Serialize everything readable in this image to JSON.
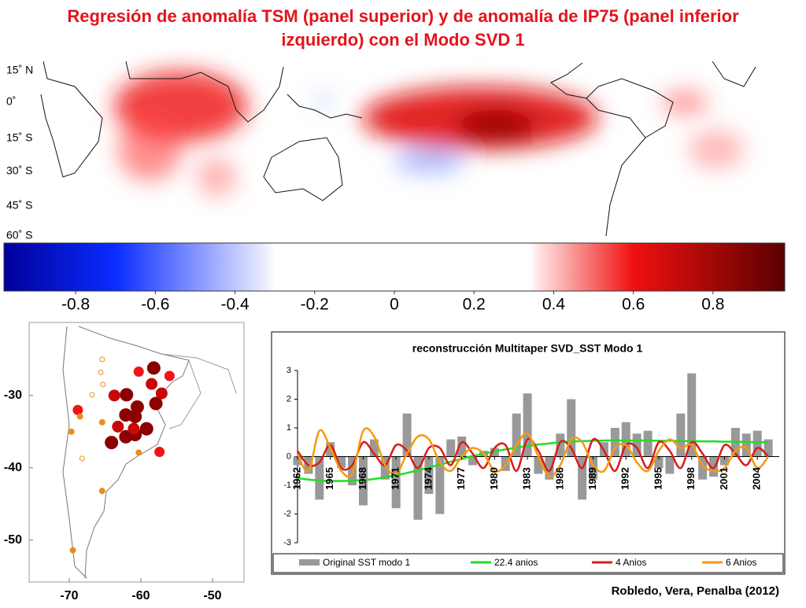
{
  "title": [
    "Regresión de anomalía TSM (panel superior) y de anomalía de IP75 (panel inferior",
    "izquierdo) con el Modo SVD 1"
  ],
  "citation": "Robledo, Vera, Penalba (2012)",
  "chart_data": [
    {
      "type": "map",
      "lat_labels": [
        "15˚ N",
        "0˚",
        "15˚ S",
        "30˚ S",
        "45˚ S",
        "60˚ S"
      ]
    },
    {
      "type": "colorbar",
      "xlim": [
        -0.98,
        0.98
      ],
      "xticks": [
        -0.8,
        -0.6,
        -0.4,
        -0.2,
        0,
        0.2,
        0.4,
        0.6,
        0.8
      ],
      "color_stops": [
        {
          "value": -0.98,
          "color": "#00009a"
        },
        {
          "value": -0.7,
          "color": "#0a2cff"
        },
        {
          "value": -0.32,
          "color": "#eef0ff"
        },
        {
          "value": -0.3,
          "color": "#ffffff"
        },
        {
          "value": 0.34,
          "color": "#ffffff"
        },
        {
          "value": 0.36,
          "color": "#ffe6e6"
        },
        {
          "value": 0.6,
          "color": "#f01010"
        },
        {
          "value": 0.98,
          "color": "#5a0000"
        }
      ]
    },
    {
      "type": "scatter",
      "xlim": [
        -75.6,
        -45.6
      ],
      "ylim": [
        -55.8,
        -19.9
      ],
      "xticks": [
        -70,
        -60,
        -50
      ],
      "yticks": [
        -30,
        -40,
        -50
      ],
      "series": [
        {
          "color": "#8b0000",
          "x": [
            -58.2,
            -62,
            -60.5,
            -62.1,
            -60.8,
            -57.9,
            -59.2,
            -62.1,
            -60.8,
            -64.1
          ],
          "values": [
            -26.2,
            -29.9,
            -31.6,
            -32.7,
            -32.9,
            -31.1,
            -34.6,
            -35.7,
            -35.4,
            -36.5
          ]
        },
        {
          "color": "#c80808",
          "x": [
            -58.5,
            -63.7,
            -63.2,
            -57.1,
            -61
          ],
          "values": [
            -28.4,
            -30,
            -34.3,
            -29.7,
            -34.6
          ]
        },
        {
          "color": "#f01515",
          "x": [
            -60.3,
            -56,
            -68.8,
            -57.4
          ],
          "values": [
            -26.7,
            -27.3,
            -32,
            -37.8
          ]
        },
        {
          "color": "#f08a1a",
          "x": [
            -69.7,
            -68.5,
            -65.4,
            -60.3,
            -65.4,
            -69.5
          ],
          "values": [
            -35,
            -32.9,
            -33.7,
            -37.9,
            -43.2,
            -51.4
          ]
        },
        {
          "color": "#f08a1a",
          "hollow": true,
          "x": [
            -65.4,
            -65.6,
            -65.3,
            -68.2,
            -66.8
          ],
          "values": [
            -25,
            -26.8,
            -28.5,
            -38.7,
            -29.9
          ]
        }
      ]
    },
    {
      "type": "line",
      "title": "reconstrucción Multitaper SVD_SST Modo 1",
      "x": [
        1962,
        1963,
        1964,
        1965,
        1966,
        1967,
        1968,
        1969,
        1970,
        1971,
        1972,
        1973,
        1974,
        1975,
        1976,
        1977,
        1978,
        1979,
        1980,
        1981,
        1982,
        1983,
        1984,
        1985,
        1986,
        1987,
        1988,
        1989,
        1990,
        1991,
        1992,
        1993,
        1994,
        1995,
        1996,
        1997,
        1998,
        1999,
        2000,
        2001,
        2002,
        2003,
        2004,
        2005
      ],
      "xlim": [
        1962,
        2006
      ],
      "xticks": [
        1962,
        1965,
        1968,
        1971,
        1974,
        1977,
        1980,
        1983,
        1986,
        1989,
        1992,
        1995,
        1998,
        2001,
        2004
      ],
      "ylim": [
        -3,
        3
      ],
      "yticks": [
        -3,
        -2,
        -1,
        0,
        1,
        2,
        3
      ],
      "series": [
        {
          "name": "Original SST modo 1",
          "kind": "bar",
          "color": "#999999",
          "values": [
            -0.3,
            -0.6,
            -1.5,
            0.5,
            -0.4,
            -1.0,
            -1.7,
            0.6,
            -0.8,
            -1.8,
            1.5,
            -2.2,
            -1.3,
            -2.0,
            0.6,
            0.7,
            -0.3,
            0.2,
            0.3,
            -0.5,
            1.5,
            2.2,
            -0.6,
            -0.8,
            0.8,
            2.0,
            -1.5,
            -0.8,
            0.5,
            1.0,
            1.2,
            0.8,
            0.9,
            -0.4,
            -0.6,
            1.5,
            2.9,
            -0.8,
            -0.7,
            -0.3,
            1.0,
            0.8,
            0.9,
            0.6
          ]
        },
        {
          "name": "22.4 anios",
          "kind": "line",
          "color": "#22dd22",
          "values": [
            -0.75,
            -0.8,
            -0.83,
            -0.85,
            -0.85,
            -0.84,
            -0.82,
            -0.78,
            -0.72,
            -0.65,
            -0.57,
            -0.48,
            -0.38,
            -0.28,
            -0.18,
            -0.08,
            0.02,
            0.1,
            0.18,
            0.25,
            0.31,
            0.37,
            0.42,
            0.46,
            0.5,
            0.52,
            0.54,
            0.55,
            0.56,
            0.56,
            0.56,
            0.56,
            0.56,
            0.55,
            0.55,
            0.54,
            0.54,
            0.53,
            0.53,
            0.52,
            0.52,
            0.51,
            0.5,
            0.5
          ]
        },
        {
          "name": "4 Anios",
          "kind": "line",
          "color": "#d91c1c",
          "values": [
            0.2,
            -0.3,
            -0.2,
            0.4,
            -0.4,
            -0.3,
            0.5,
            0.1,
            -0.3,
            0.4,
            0.2,
            -0.4,
            0.3,
            0.3,
            -0.3,
            0.5,
            0.1,
            -0.4,
            0.3,
            0.4,
            -0.5,
            0.6,
            0.2,
            -0.5,
            0.5,
            0.3,
            -0.4,
            0.6,
            0.2,
            -0.5,
            0.4,
            0.3,
            -0.4,
            0.5,
            0.2,
            -0.4,
            0.5,
            0.1,
            -0.4,
            0.4,
            0.1,
            -0.3,
            0.3,
            0.0
          ]
        },
        {
          "name": "6 Anios",
          "kind": "line",
          "color": "#f59a0c",
          "values": [
            0.1,
            -0.5,
            0.9,
            0.3,
            -0.5,
            -0.6,
            0.9,
            0.7,
            -0.3,
            -0.6,
            0.1,
            0.7,
            0.6,
            -0.2,
            -0.5,
            0.0,
            0.3,
            0.1,
            -0.5,
            -0.3,
            0.4,
            0.8,
            0.0,
            -0.7,
            -0.3,
            0.6,
            0.5,
            -0.3,
            -0.5,
            0.3,
            0.4,
            -0.2,
            -0.5,
            0.2,
            0.6,
            0.3,
            0.4,
            -0.3,
            -0.5,
            -0.4,
            0.2,
            0.3,
            -0.4,
            0.0
          ]
        }
      ]
    }
  ]
}
